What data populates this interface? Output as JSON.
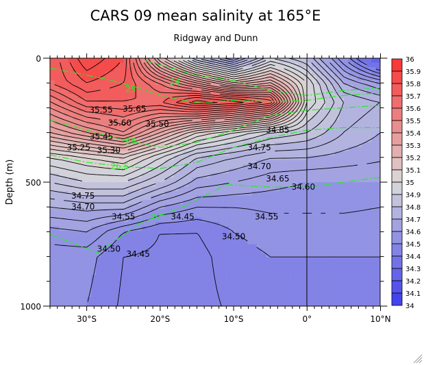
{
  "chart_data": {
    "type": "heatmap",
    "title": "CARS 09 mean salinity at 165°E",
    "subtitle": "Ridgway and Dunn",
    "xlabel": "",
    "ylabel": "Depth (m)",
    "xlim": [
      -35,
      10
    ],
    "ylim": [
      0,
      1000
    ],
    "x_ticks": [
      {
        "value": -30,
        "label": "30°S"
      },
      {
        "value": -20,
        "label": "20°S"
      },
      {
        "value": -10,
        "label": "10°S"
      },
      {
        "value": 0,
        "label": "0°"
      },
      {
        "value": 10,
        "label": "10°N"
      }
    ],
    "y_ticks": [
      {
        "value": 0,
        "label": "0"
      },
      {
        "value": 500,
        "label": "500"
      },
      {
        "value": 1000,
        "label": "1000"
      }
    ],
    "grid_lat": [
      -35,
      -30,
      -25,
      -20,
      -15,
      -10,
      -5,
      0,
      5,
      10
    ],
    "grid_depth": [
      0,
      100,
      175,
      300,
      400,
      500,
      600,
      700,
      800,
      1000
    ],
    "salinity": [
      [
        35.7,
        35.9,
        35.8,
        35.2,
        34.8,
        34.6,
        34.9,
        34.8,
        34.5,
        34.2
      ],
      [
        35.7,
        35.8,
        35.75,
        35.6,
        35.4,
        35.2,
        35.3,
        35.0,
        34.7,
        34.6
      ],
      [
        35.55,
        35.7,
        35.7,
        35.7,
        35.85,
        35.8,
        35.7,
        35.0,
        34.8,
        34.75
      ],
      [
        35.3,
        35.4,
        35.5,
        35.3,
        35.1,
        35.0,
        34.9,
        34.85,
        34.75,
        34.7
      ],
      [
        35.0,
        35.05,
        35.1,
        34.95,
        34.8,
        34.75,
        34.7,
        34.7,
        34.68,
        34.66
      ],
      [
        34.85,
        34.9,
        34.9,
        34.8,
        34.68,
        34.65,
        34.62,
        34.6,
        34.6,
        34.6
      ],
      [
        34.7,
        34.72,
        34.72,
        34.6,
        34.55,
        34.55,
        34.56,
        34.56,
        34.56,
        34.55
      ],
      [
        34.58,
        34.6,
        34.5,
        34.45,
        34.45,
        34.5,
        34.52,
        34.52,
        34.52,
        34.52
      ],
      [
        34.52,
        34.52,
        34.45,
        34.44,
        34.43,
        34.48,
        34.5,
        34.5,
        34.5,
        34.5
      ],
      [
        34.5,
        34.5,
        34.44,
        34.45,
        34.43,
        34.46,
        34.48,
        34.48,
        34.48,
        34.48
      ]
    ],
    "contour_interval": 0.05,
    "colorbar": {
      "min": 34,
      "max": 36,
      "step": 0.1,
      "labels": [
        "36",
        "35.9",
        "35.8",
        "35.7",
        "35.6",
        "35.5",
        "35.4",
        "35.3",
        "35.2",
        "35.1",
        "35",
        "34.9",
        "34.8",
        "34.7",
        "34.6",
        "34.5",
        "34.4",
        "34.3",
        "34.2",
        "34.1",
        "34"
      ],
      "color_low": "#3c3cf0",
      "color_mid": "#dadada",
      "color_high": "#fa3232"
    },
    "density_contours": [
      {
        "label": "24",
        "lat": [
          -22,
          -15,
          -10,
          -5,
          0,
          5,
          10
        ],
        "depth": [
          10,
          70,
          90,
          130,
          150,
          130,
          120
        ],
        "label_lat": -18,
        "label_depth": 95
      },
      {
        "label": "25",
        "lat": [
          -35,
          -28,
          -24,
          -20,
          -15,
          -10,
          -5,
          0,
          5,
          10
        ],
        "depth": [
          40,
          80,
          110,
          150,
          180,
          170,
          175,
          170,
          150,
          140
        ],
        "label_lat": -24,
        "label_depth": 125
      },
      {
        "label": "26",
        "lat": [
          -35,
          -30,
          -25,
          -20,
          -15,
          -10,
          -5,
          0,
          5,
          10
        ],
        "depth": [
          250,
          290,
          330,
          360,
          340,
          290,
          230,
          210,
          200,
          190
        ],
        "label_lat": -24,
        "label_depth": 335
      },
      {
        "label": "26.5",
        "lat": [
          -35,
          -30,
          -25,
          -20,
          -15,
          -10,
          -5,
          0,
          5,
          10
        ],
        "depth": [
          390,
          420,
          437,
          445,
          420,
          360,
          320,
          290,
          280,
          280
        ],
        "label_lat": -25.5,
        "label_depth": 437
      },
      {
        "label": "27",
        "lat": [
          -35,
          -28.5,
          -22.7,
          -16.5,
          -11,
          -5,
          0,
          5,
          10
        ],
        "depth": [
          710,
          785,
          665,
          595,
          510,
          520,
          520,
          500,
          480
        ],
        "label_lat": -20.5,
        "label_depth": 640
      }
    ],
    "contour_labels": [
      {
        "text": "35.65",
        "lat": -23.5,
        "depth": 205
      },
      {
        "text": "35.60",
        "lat": -25.5,
        "depth": 225
      },
      {
        "text": "35.55",
        "lat": -26,
        "depth": 245
      },
      {
        "text": "35.50",
        "lat": -24.5,
        "depth": 265
      },
      {
        "text": "35.45",
        "lat": -28,
        "depth": 280
      },
      {
        "text": "35.30",
        "lat": -27,
        "depth": 335
      },
      {
        "text": "35.25",
        "lat": -27,
        "depth": 360
      },
      {
        "text": "34.75",
        "lat": -30.5,
        "depth": 555
      },
      {
        "text": "34.70",
        "lat": -30.5,
        "depth": 600
      },
      {
        "text": "34.55",
        "lat": -25,
        "depth": 640
      },
      {
        "text": "34.50",
        "lat": -27,
        "depth": 770
      },
      {
        "text": "34.45",
        "lat": -19,
        "depth": 640
      },
      {
        "text": "34.45",
        "lat": -23,
        "depth": 790
      },
      {
        "text": "34.50",
        "lat": -10,
        "depth": 720
      },
      {
        "text": "34.85",
        "lat": -4,
        "depth": 290
      },
      {
        "text": "34.75",
        "lat": -6.5,
        "depth": 360
      },
      {
        "text": "34.70",
        "lat": -6.5,
        "depth": 400
      },
      {
        "text": "34.65",
        "lat": -4,
        "depth": 450
      },
      {
        "text": "34.60",
        "lat": -0.5,
        "depth": 520
      },
      {
        "text": "34.55",
        "lat": -5.5,
        "depth": 640
      }
    ]
  }
}
